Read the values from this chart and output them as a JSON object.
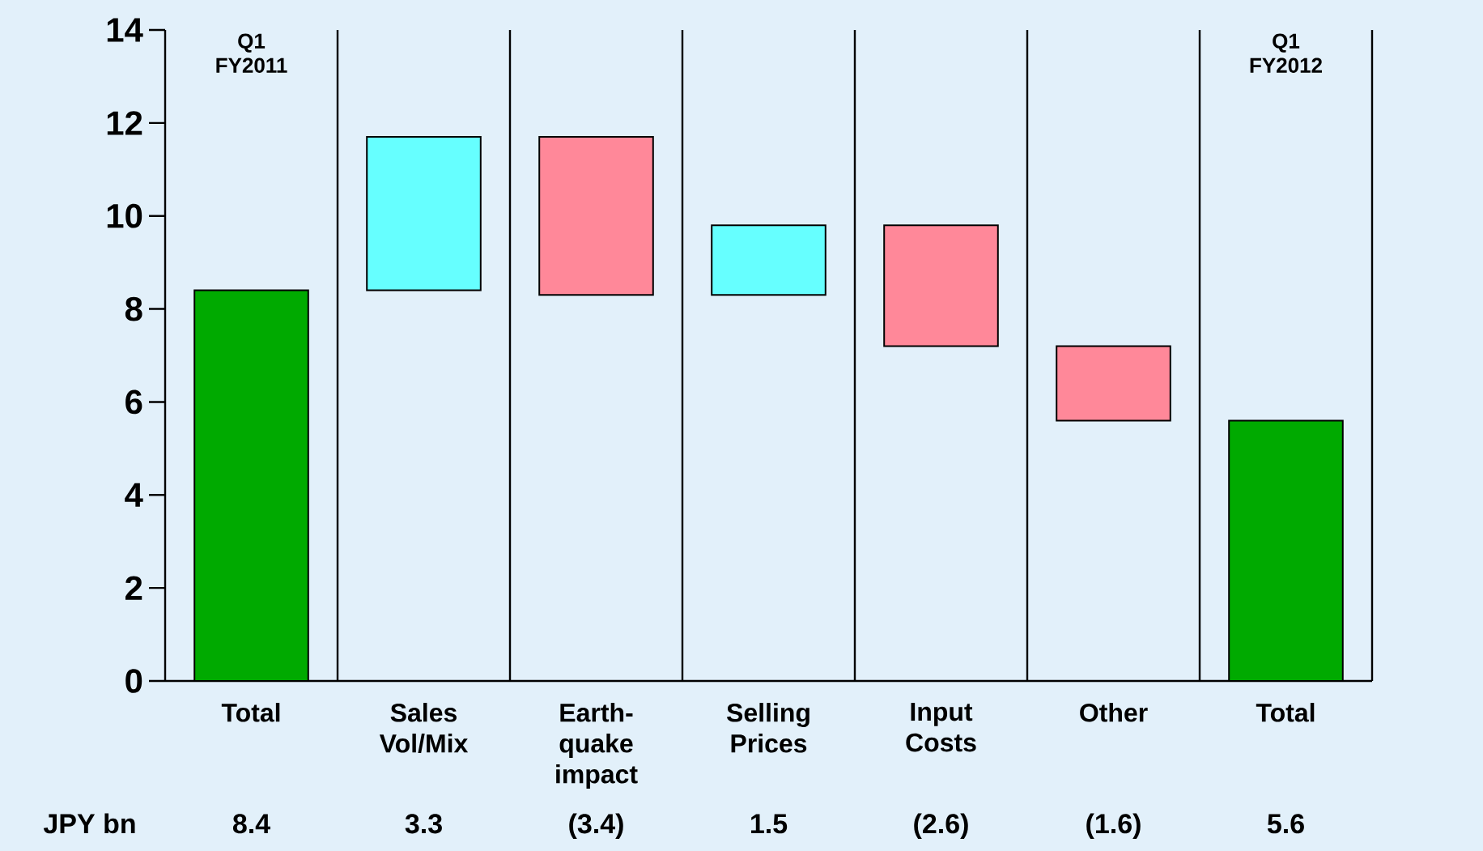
{
  "chart_data": {
    "type": "bar",
    "categories": [
      "Total",
      "Sales Vol/Mix",
      "Earth-quake impact",
      "Selling Prices",
      "Input Costs",
      "Other",
      "Total"
    ],
    "values": [
      8.4,
      3.3,
      -3.4,
      1.5,
      -2.6,
      -1.6,
      5.6
    ],
    "base": [
      0,
      8.4,
      11.7,
      8.3,
      9.8,
      7.2,
      0
    ],
    "colors": [
      "#00aa00",
      "#66ffff",
      "#ff8899",
      "#66ffff",
      "#ff8899",
      "#ff8899",
      "#00aa00"
    ],
    "value_labels": [
      "8.4",
      "3.3",
      "(3.4)",
      "1.5",
      "(2.6)",
      "(1.6)",
      "5.6"
    ],
    "annotations": [
      "JPY bn",
      "Q1 FY2011",
      "Q1 FY2012"
    ],
    "ylim": [
      0,
      14
    ],
    "yticks": [
      0,
      2,
      4,
      6,
      8,
      10,
      12,
      14
    ],
    "grid": "x"
  }
}
